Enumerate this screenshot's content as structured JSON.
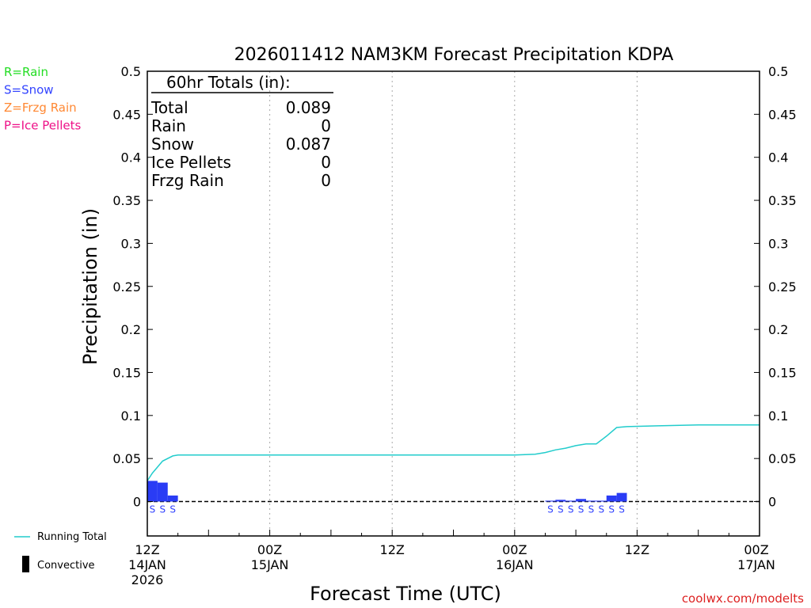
{
  "chart_data": {
    "type": "bar",
    "title": "2026011412 NAM3KM Forecast Precipitation KDPA",
    "xlabel": "Forecast Time (UTC)",
    "ylabel": "Precipitation (in)",
    "ylim": [
      -0.04,
      0.5
    ],
    "xlim_hours": [
      0,
      60
    ],
    "y_ticks": [
      0,
      0.05,
      0.1,
      0.15,
      0.2,
      0.25,
      0.3,
      0.35,
      0.4,
      0.45,
      0.5
    ],
    "y_tick_labels": [
      "0",
      "0.05",
      "0.1",
      "0.15",
      "0.2",
      "0.25",
      "0.3",
      "0.35",
      "0.4",
      "0.45",
      "0.5"
    ],
    "x_ticks": [
      {
        "hour": 0,
        "line1": "12Z",
        "line2": "14JAN",
        "line3": "2026"
      },
      {
        "hour": 12,
        "line1": "00Z",
        "line2": "15JAN",
        "line3": ""
      },
      {
        "hour": 24,
        "line1": "12Z",
        "line2": "",
        "line3": ""
      },
      {
        "hour": 36,
        "line1": "00Z",
        "line2": "16JAN",
        "line3": ""
      },
      {
        "hour": 48,
        "line1": "12Z",
        "line2": "",
        "line3": ""
      },
      {
        "hour": 60,
        "line1": "00Z",
        "line2": "17JAN",
        "line3": ""
      }
    ],
    "vertical_grid_hours": [
      12,
      24,
      36,
      48
    ],
    "bars": [
      {
        "hour": 0,
        "value": 0.024,
        "type": "S"
      },
      {
        "hour": 1,
        "value": 0.022,
        "type": "S"
      },
      {
        "hour": 2,
        "value": 0.007,
        "type": "S"
      },
      {
        "hour": 39,
        "value": 0.001,
        "type": "S"
      },
      {
        "hour": 40,
        "value": 0.002,
        "type": "S"
      },
      {
        "hour": 41,
        "value": 0.001,
        "type": "S"
      },
      {
        "hour": 42,
        "value": 0.003,
        "type": "S"
      },
      {
        "hour": 43,
        "value": 0.001,
        "type": "S"
      },
      {
        "hour": 44,
        "value": 0.001,
        "type": "S"
      },
      {
        "hour": 45,
        "value": 0.007,
        "type": "S"
      },
      {
        "hour": 46,
        "value": 0.01,
        "type": "S"
      }
    ],
    "running_total": {
      "name": "Running Total",
      "x": [
        0,
        0.5,
        1.5,
        2.5,
        3,
        6,
        12,
        24,
        36,
        38,
        39,
        40,
        41,
        42,
        43,
        44,
        45,
        46,
        47,
        50,
        54,
        60
      ],
      "y": [
        0.024,
        0.033,
        0.047,
        0.053,
        0.054,
        0.054,
        0.054,
        0.054,
        0.054,
        0.055,
        0.057,
        0.06,
        0.062,
        0.065,
        0.067,
        0.067,
        0.076,
        0.086,
        0.087,
        0.088,
        0.089,
        0.089
      ]
    },
    "legend": {
      "precip_types": [
        {
          "label": "R=Rain",
          "color": "#22dd22"
        },
        {
          "label": "S=Snow",
          "color": "#3344ff"
        },
        {
          "label": "Z=Frzg Rain",
          "color": "#ff8833"
        },
        {
          "label": "P=Ice Pellets",
          "color": "#ee1188"
        }
      ],
      "running_total_label": "Running Total",
      "convective_label": "Convective"
    },
    "totals": {
      "heading": "60hr Totals (in):",
      "rows": [
        {
          "label": "Total",
          "value": "0.089"
        },
        {
          "label": "Rain",
          "value": "0"
        },
        {
          "label": "Snow",
          "value": "0.087"
        },
        {
          "label": "Ice Pellets",
          "value": "0"
        },
        {
          "label": "Frzg Rain",
          "value": "0"
        }
      ]
    },
    "credit": "coolwx.com/modelts",
    "colors": {
      "bar": "#2a3cf5",
      "line": "#22cccc",
      "snow_label": "#3344ff",
      "credit": "#dd2222",
      "grid": "#aaaaaa"
    }
  }
}
